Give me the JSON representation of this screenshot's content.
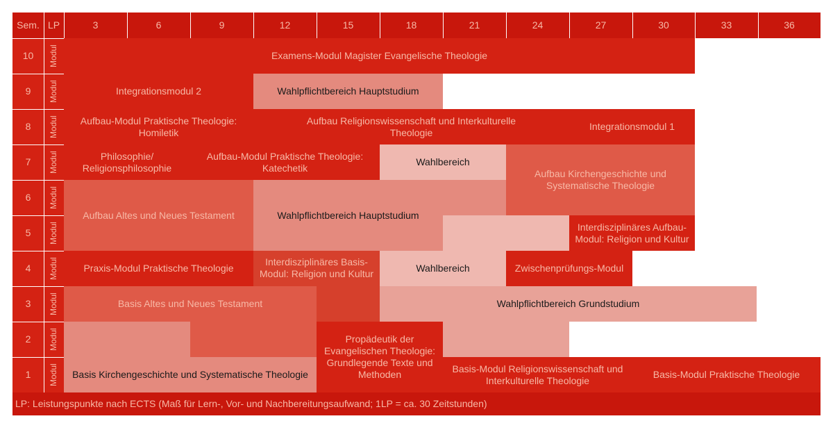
{
  "colors": {
    "grid": "#ffffff",
    "header": "#c8170c",
    "dark": "#d42213",
    "medium": "#d6402c",
    "mid": "#df5a48",
    "light": "#e48a7e",
    "pale": "#e8a298",
    "palest": "#efb8b0",
    "header_text": "#f7b8a6",
    "light_text": "#1a1a1a"
  },
  "header": {
    "sem": "Sem.",
    "lp": "LP",
    "lp_values": [
      "3",
      "6",
      "9",
      "12",
      "15",
      "18",
      "21",
      "24",
      "27",
      "30",
      "33",
      "36"
    ]
  },
  "semesters": [
    "10",
    "9",
    "8",
    "7",
    "6",
    "5",
    "4",
    "3",
    "2",
    "1"
  ],
  "modul_label": "Modul",
  "modules": [
    {
      "key": "examen",
      "label": "Examens-Modul Magister Evangelische Theologie",
      "tone": "dark"
    },
    {
      "key": "integ2",
      "label": "Integrationsmodul 2",
      "tone": "dark"
    },
    {
      "key": "wpf_haupt_9",
      "label": "Wahlpflichtbereich Hauptstudium",
      "tone": "light"
    },
    {
      "key": "aufbau_homiletik",
      "label": "Aufbau-Modul Praktische Theologie:\nHomiletik",
      "tone": "dark"
    },
    {
      "key": "aufbau_religion",
      "label": "Aufbau Religionswissenschaft und Interkulturelle\nTheologie",
      "tone": "dark"
    },
    {
      "key": "integ1",
      "label": "Integrationsmodul 1",
      "tone": "dark"
    },
    {
      "key": "philosophie",
      "label": "Philosophie/\nReligionsphilosophie",
      "tone": "dark"
    },
    {
      "key": "aufbau_katechetik",
      "label": "Aufbau-Modul Praktische Theologie:\nKatechetik",
      "tone": "dark"
    },
    {
      "key": "wahlbereich_7",
      "label": "Wahlbereich",
      "tone": "palest"
    },
    {
      "key": "aufbau_kirchengeschichte",
      "label": "Aufbau Kirchengeschichte und\nSystematische Theologie",
      "tone": "mid"
    },
    {
      "key": "aufbau_at_nt",
      "label": "Aufbau Altes und Neues Testament",
      "tone": "mid"
    },
    {
      "key": "wpf_haupt_56",
      "label": "Wahlpflichtbereich Hauptstudium",
      "tone": "light"
    },
    {
      "key": "interdisz_aufbau",
      "label": "Interdisziplinäres Aufbau-\nModul: Religion und Kultur",
      "tone": "dark"
    },
    {
      "key": "praxis",
      "label": "Praxis-Modul Praktische Theologie",
      "tone": "dark"
    },
    {
      "key": "interdisz_basis",
      "label": "Interdisziplinäres Basis-\nModul: Religion und Kultur",
      "tone": "medium"
    },
    {
      "key": "wahlbereich_4",
      "label": "Wahlbereich",
      "tone": "palest"
    },
    {
      "key": "zwischenpruefung",
      "label": "Zwischenprüfungs-Modul",
      "tone": "dark"
    },
    {
      "key": "basis_at_nt",
      "label": "Basis Altes und Neues Testament",
      "tone": "mid"
    },
    {
      "key": "wpf_grund",
      "label": "Wahlpflichtbereich Grundstudium",
      "tone": "pale"
    },
    {
      "key": "propaedeutik",
      "label": "Propädeutik der\nEvangelischen Theologie:\nGrundlegende Texte und\nMethoden",
      "tone": "dark"
    },
    {
      "key": "basis_kirchengeschichte",
      "label": "Basis Kirchengeschichte und Systematische Theologie",
      "tone": "light"
    },
    {
      "key": "basis_religion",
      "label": "Basis-Modul Religionswissenschaft und\nInterkulturelle Theologie",
      "tone": "dark"
    },
    {
      "key": "basis_praktisch",
      "label": "Basis-Modul Praktische Theologie",
      "tone": "dark"
    }
  ],
  "footnote": "LP: Leistungspunkte nach ECTS (Maß für Lern-, Vor- und Nachbereitungsaufwand; 1LP = ca. 30 Zeitstunden)"
}
